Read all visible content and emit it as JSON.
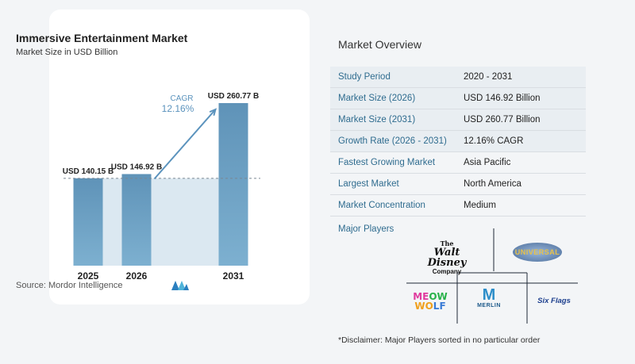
{
  "left_panel": {
    "title": "Immersive Entertainment Market",
    "subtitle": "Market Size in USD Billion",
    "source": "Source:  Mordor Intelligence",
    "logo": "mordor-intelligence-logo"
  },
  "chart_data": {
    "type": "bar",
    "title": "Immersive Entertainment Market",
    "subtitle": "Market Size in USD Billion",
    "categories": [
      "2025",
      "2026",
      "2031"
    ],
    "values": [
      140.15,
      146.92,
      260.77
    ],
    "value_labels": [
      "USD 140.15 B",
      "USD 146.92 B",
      "USD 260.77 B"
    ],
    "annotation": {
      "label": "CAGR",
      "value": "12.16%"
    },
    "reference_line_value": 140.15,
    "ylim": [
      0,
      260.77
    ],
    "grid": false,
    "colors": {
      "bar": "#5f93b8",
      "bar_light": "#7db0d0",
      "shade": "#dbe8f1",
      "arrow": "#5b93bd",
      "cagr_text": "#5b93bd"
    }
  },
  "overview": {
    "title": "Market Overview",
    "rows": [
      {
        "key": "Study Period",
        "value": "2020 - 2031"
      },
      {
        "key": "Market Size (2026)",
        "value": "USD 146.92 Billion"
      },
      {
        "key": "Market Size (2031)",
        "value": "USD 260.77 Billion"
      },
      {
        "key": "Growth Rate (2026 - 2031)",
        "value": "12.16% CAGR"
      },
      {
        "key": "Fastest Growing Market",
        "value": "Asia Pacific"
      },
      {
        "key": "Largest Market",
        "value": "North America"
      },
      {
        "key": "Market Concentration",
        "value": "Medium"
      }
    ],
    "players_title": "Major Players",
    "players": {
      "disney": {
        "line1": "The",
        "line2": "Walt Disney",
        "line3": "Company"
      },
      "universal": "UNIVERSAL",
      "meow_wolf": {
        "l1a": "ME",
        "l1b": "OW",
        "l2a": "WO",
        "l2b": "LF"
      },
      "merlin": {
        "mark": "M",
        "text": "MERLIN"
      },
      "six_flags": "Six Flags"
    },
    "disclaimer": "*Disclaimer: Major Players sorted in no particular order"
  }
}
